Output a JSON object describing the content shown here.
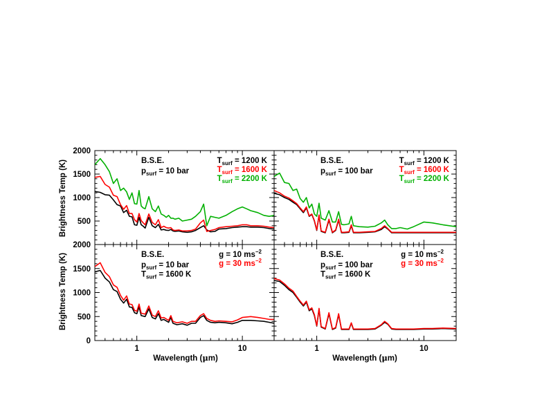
{
  "colors": {
    "black": "#000000",
    "red": "#ff0000",
    "green": "#00b000"
  },
  "axes": {
    "ylabel": "Brightness Temp (K)",
    "xlabel_text": "Wavelength (",
    "xlabel_mu": "μ",
    "xlabel_end": "m)",
    "x_scale": "log",
    "xlim": [
      0.4,
      20
    ],
    "ylim": [
      0,
      2000
    ],
    "yticks": [
      "0",
      "500",
      "1000",
      "1500",
      "2000"
    ],
    "xticks": [
      "1",
      "10"
    ]
  },
  "panels": [
    {
      "bse": "B.S.E.",
      "left_lines": [
        {
          "base": "p",
          "sub": "surf",
          "rest": " = 10 bar"
        }
      ],
      "right_lines": [
        {
          "base": "T",
          "sub": "surf",
          "rest": " = 1200 K",
          "color": "#000000"
        },
        {
          "base": "T",
          "sub": "surf",
          "rest": " = 1600 K",
          "color": "#ff0000"
        },
        {
          "base": "T",
          "sub": "surf",
          "rest": " = 2200 K",
          "color": "#00b000"
        }
      ]
    },
    {
      "bse": "B.S.E.",
      "left_lines": [
        {
          "base": "p",
          "sub": "surf",
          "rest": " = 100 bar"
        }
      ],
      "right_lines": [
        {
          "base": "T",
          "sub": "surf",
          "rest": " = 1200 K",
          "color": "#000000"
        },
        {
          "base": "T",
          "sub": "surf",
          "rest": " = 1600 K",
          "color": "#ff0000"
        },
        {
          "base": "T",
          "sub": "surf",
          "rest": " = 2200 K",
          "color": "#00b000"
        }
      ]
    },
    {
      "bse": "B.S.E.",
      "left_lines": [
        {
          "base": "p",
          "sub": "surf",
          "rest": " = 10 bar"
        },
        {
          "base": "T",
          "sub": "surf",
          "rest": " = 1600 K"
        }
      ],
      "right_lines": [
        {
          "base": "g = 10 ms",
          "sup": "−2",
          "color": "#000000"
        },
        {
          "base": "g = 30 ms",
          "sup": "−2",
          "color": "#ff0000"
        }
      ]
    },
    {
      "bse": "B.S.E.",
      "left_lines": [
        {
          "base": "p",
          "sub": "surf",
          "rest": " = 100 bar"
        },
        {
          "base": "T",
          "sub": "surf",
          "rest": " = 1600 K"
        }
      ],
      "right_lines": [
        {
          "base": "g = 10 ms",
          "sup": "−2",
          "color": "#000000"
        },
        {
          "base": "g = 30 ms",
          "sup": "−2",
          "color": "#ff0000"
        }
      ]
    }
  ],
  "chart_data": [
    {
      "type": "line",
      "x_scale": "log",
      "xlim": [
        0.4,
        20
      ],
      "ylim": [
        0,
        2000
      ],
      "series": [
        {
          "color": "#000000",
          "x": [
            0.4,
            0.45,
            0.5,
            0.55,
            0.6,
            0.65,
            0.7,
            0.75,
            0.8,
            0.85,
            0.9,
            0.95,
            1.0,
            1.05,
            1.1,
            1.15,
            1.2,
            1.3,
            1.4,
            1.5,
            1.6,
            1.7,
            1.8,
            1.9,
            2.0,
            2.1,
            2.2,
            2.3,
            2.5,
            2.7,
            3.0,
            3.3,
            3.6,
            4.0,
            4.3,
            4.6,
            5.0,
            5.5,
            6.0,
            7.0,
            8.0,
            9.0,
            10.0,
            11.0,
            12.0,
            14.0,
            16.0,
            18.0,
            20.0
          ],
          "y": [
            1130,
            1110,
            1060,
            1050,
            950,
            850,
            820,
            680,
            730,
            600,
            590,
            420,
            410,
            580,
            420,
            390,
            350,
            580,
            400,
            360,
            430,
            310,
            320,
            305,
            300,
            320,
            290,
            280,
            290,
            270,
            260,
            270,
            300,
            360,
            400,
            310,
            270,
            280,
            330,
            340,
            360,
            370,
            380,
            380,
            370,
            370,
            360,
            340,
            330
          ]
        },
        {
          "color": "#ff0000",
          "x": [
            0.4,
            0.45,
            0.5,
            0.55,
            0.6,
            0.65,
            0.7,
            0.75,
            0.8,
            0.85,
            0.9,
            0.95,
            1.0,
            1.05,
            1.1,
            1.15,
            1.2,
            1.3,
            1.4,
            1.5,
            1.6,
            1.7,
            1.8,
            1.9,
            2.0,
            2.1,
            2.2,
            2.3,
            2.5,
            2.7,
            3.0,
            3.3,
            3.6,
            4.0,
            4.3,
            4.6,
            5.0,
            5.5,
            6.0,
            7.0,
            8.0,
            9.0,
            10.0,
            11.0,
            12.0,
            14.0,
            16.0,
            18.0,
            20.0
          ],
          "y": [
            1430,
            1450,
            1280,
            1220,
            1050,
            1020,
            850,
            750,
            830,
            660,
            660,
            530,
            480,
            660,
            510,
            460,
            420,
            650,
            470,
            420,
            530,
            360,
            390,
            360,
            350,
            360,
            310,
            300,
            310,
            290,
            290,
            300,
            330,
            460,
            520,
            280,
            300,
            320,
            360,
            380,
            390,
            400,
            420,
            420,
            400,
            400,
            390,
            370,
            360
          ]
        },
        {
          "color": "#00b000",
          "x": [
            0.4,
            0.45,
            0.5,
            0.55,
            0.6,
            0.65,
            0.7,
            0.75,
            0.8,
            0.85,
            0.9,
            0.95,
            1.0,
            1.05,
            1.1,
            1.15,
            1.2,
            1.3,
            1.4,
            1.5,
            1.6,
            1.7,
            1.8,
            1.9,
            2.0,
            2.1,
            2.2,
            2.3,
            2.5,
            2.7,
            3.0,
            3.3,
            3.6,
            4.0,
            4.3,
            4.6,
            5.0,
            5.5,
            6.0,
            7.0,
            8.0,
            9.0,
            10.0,
            11.0,
            12.0,
            14.0,
            16.0,
            18.0,
            20.0
          ],
          "y": [
            1700,
            1830,
            1700,
            1550,
            1300,
            1400,
            1150,
            1200,
            1120,
            960,
            1100,
            870,
            860,
            1150,
            820,
            780,
            760,
            1020,
            760,
            700,
            820,
            650,
            620,
            580,
            620,
            560,
            560,
            540,
            560,
            500,
            520,
            540,
            600,
            700,
            860,
            400,
            600,
            580,
            560,
            620,
            700,
            760,
            800,
            760,
            720,
            680,
            620,
            600,
            620
          ]
        }
      ]
    },
    {
      "type": "line",
      "x_scale": "log",
      "xlim": [
        0.4,
        20
      ],
      "ylim": [
        0,
        2000
      ],
      "series": [
        {
          "color": "#000000",
          "x": [
            0.4,
            0.45,
            0.5,
            0.55,
            0.6,
            0.65,
            0.7,
            0.75,
            0.8,
            0.85,
            0.9,
            0.95,
            1.0,
            1.05,
            1.1,
            1.2,
            1.3,
            1.4,
            1.5,
            1.6,
            1.7,
            1.8,
            2.0,
            2.1,
            2.2,
            2.5,
            3.0,
            3.5,
            4.0,
            4.3,
            4.6,
            5.0,
            5.5,
            6.0,
            7.0,
            8.0,
            10.0,
            12.0,
            15.0,
            20.0
          ],
          "y": [
            1090,
            1060,
            1000,
            960,
            900,
            850,
            760,
            680,
            780,
            600,
            640,
            500,
            300,
            620,
            280,
            250,
            520,
            250,
            300,
            520,
            250,
            250,
            260,
            400,
            250,
            250,
            260,
            270,
            320,
            380,
            330,
            250,
            250,
            250,
            250,
            250,
            250,
            250,
            250,
            250
          ]
        },
        {
          "color": "#ff0000",
          "x": [
            0.4,
            0.45,
            0.5,
            0.55,
            0.6,
            0.65,
            0.7,
            0.75,
            0.8,
            0.85,
            0.9,
            0.95,
            1.0,
            1.05,
            1.1,
            1.2,
            1.3,
            1.4,
            1.5,
            1.6,
            1.7,
            1.8,
            2.0,
            2.1,
            2.2,
            2.5,
            3.0,
            3.5,
            4.0,
            4.3,
            4.6,
            5.0,
            5.5,
            6.0,
            7.0,
            8.0,
            10.0,
            12.0,
            15.0,
            20.0
          ],
          "y": [
            1150,
            1100,
            1030,
            990,
            930,
            870,
            780,
            700,
            800,
            610,
            650,
            510,
            310,
            630,
            290,
            260,
            540,
            260,
            310,
            540,
            260,
            260,
            270,
            420,
            260,
            260,
            270,
            280,
            340,
            400,
            340,
            260,
            260,
            260,
            260,
            260,
            260,
            260,
            260,
            260
          ]
        },
        {
          "color": "#00b000",
          "x": [
            0.4,
            0.45,
            0.5,
            0.55,
            0.6,
            0.65,
            0.7,
            0.75,
            0.8,
            0.85,
            0.9,
            0.95,
            1.0,
            1.05,
            1.1,
            1.2,
            1.3,
            1.4,
            1.5,
            1.6,
            1.7,
            1.8,
            2.0,
            2.1,
            2.2,
            2.5,
            3.0,
            3.5,
            4.0,
            4.3,
            4.6,
            5.0,
            5.5,
            6.0,
            7.0,
            8.0,
            10.0,
            12.0,
            15.0,
            20.0
          ],
          "y": [
            1450,
            1520,
            1320,
            1300,
            1150,
            1180,
            980,
            900,
            1000,
            780,
            860,
            650,
            600,
            880,
            560,
            520,
            720,
            480,
            480,
            700,
            430,
            420,
            440,
            600,
            400,
            380,
            370,
            390,
            460,
            520,
            420,
            340,
            340,
            360,
            330,
            380,
            480,
            460,
            420,
            380
          ]
        }
      ]
    },
    {
      "type": "line",
      "x_scale": "log",
      "xlim": [
        0.4,
        20
      ],
      "ylim": [
        0,
        2000
      ],
      "series": [
        {
          "color": "#000000",
          "x": [
            0.4,
            0.45,
            0.5,
            0.55,
            0.6,
            0.65,
            0.7,
            0.75,
            0.8,
            0.85,
            0.9,
            0.95,
            1.0,
            1.05,
            1.1,
            1.2,
            1.3,
            1.4,
            1.5,
            1.6,
            1.7,
            1.8,
            2.0,
            2.1,
            2.2,
            2.4,
            2.7,
            3.0,
            3.3,
            3.6,
            4.0,
            4.3,
            4.6,
            5.0,
            5.5,
            6.0,
            7.0,
            8.0,
            9.0,
            10.0,
            12.0,
            14.0,
            16.0,
            18.0,
            20.0
          ],
          "y": [
            1430,
            1460,
            1300,
            1220,
            1060,
            1020,
            860,
            780,
            860,
            700,
            690,
            580,
            560,
            700,
            520,
            500,
            660,
            480,
            450,
            560,
            420,
            440,
            380,
            480,
            360,
            330,
            350,
            320,
            360,
            360,
            480,
            520,
            420,
            380,
            370,
            380,
            370,
            350,
            380,
            420,
            420,
            410,
            400,
            380,
            360
          ]
        },
        {
          "color": "#ff0000",
          "x": [
            0.4,
            0.45,
            0.5,
            0.55,
            0.6,
            0.65,
            0.7,
            0.75,
            0.8,
            0.85,
            0.9,
            0.95,
            1.0,
            1.05,
            1.1,
            1.2,
            1.3,
            1.4,
            1.5,
            1.6,
            1.7,
            1.8,
            2.0,
            2.1,
            2.2,
            2.4,
            2.7,
            3.0,
            3.3,
            3.6,
            4.0,
            4.3,
            4.6,
            5.0,
            5.5,
            6.0,
            7.0,
            8.0,
            9.0,
            10.0,
            12.0,
            14.0,
            16.0,
            18.0,
            20.0
          ],
          "y": [
            1540,
            1620,
            1420,
            1330,
            1160,
            1110,
            940,
            840,
            930,
            760,
            750,
            630,
            610,
            760,
            570,
            550,
            720,
            530,
            500,
            620,
            470,
            480,
            420,
            520,
            400,
            370,
            390,
            360,
            400,
            400,
            520,
            560,
            460,
            420,
            400,
            410,
            400,
            390,
            430,
            480,
            500,
            480,
            460,
            440,
            440
          ]
        }
      ]
    },
    {
      "type": "line",
      "x_scale": "log",
      "xlim": [
        0.4,
        20
      ],
      "ylim": [
        0,
        2000
      ],
      "series": [
        {
          "color": "#000000",
          "x": [
            0.4,
            0.45,
            0.5,
            0.55,
            0.6,
            0.65,
            0.7,
            0.75,
            0.8,
            0.85,
            0.9,
            0.95,
            1.0,
            1.05,
            1.1,
            1.2,
            1.3,
            1.4,
            1.5,
            1.6,
            1.7,
            1.8,
            2.0,
            2.1,
            2.2,
            2.5,
            3.0,
            3.5,
            4.0,
            4.3,
            4.6,
            5.0,
            5.5,
            6.0,
            7.0,
            8.0,
            10.0,
            12.0,
            15.0,
            20.0
          ],
          "y": [
            1250,
            1230,
            1150,
            1060,
            1000,
            900,
            800,
            720,
            800,
            620,
            660,
            520,
            300,
            650,
            280,
            240,
            560,
            230,
            260,
            540,
            230,
            230,
            230,
            360,
            230,
            230,
            230,
            240,
            320,
            380,
            340,
            240,
            230,
            230,
            230,
            230,
            240,
            240,
            250,
            240
          ]
        },
        {
          "color": "#ff0000",
          "x": [
            0.4,
            0.45,
            0.5,
            0.55,
            0.6,
            0.65,
            0.7,
            0.75,
            0.8,
            0.85,
            0.9,
            0.95,
            1.0,
            1.05,
            1.1,
            1.2,
            1.3,
            1.4,
            1.5,
            1.6,
            1.7,
            1.8,
            2.0,
            2.1,
            2.2,
            2.5,
            3.0,
            3.5,
            4.0,
            4.3,
            4.6,
            5.0,
            5.5,
            6.0,
            7.0,
            8.0,
            10.0,
            12.0,
            15.0,
            20.0
          ],
          "y": [
            1290,
            1260,
            1180,
            1090,
            1030,
            920,
            820,
            740,
            820,
            640,
            680,
            540,
            310,
            670,
            290,
            250,
            580,
            240,
            270,
            560,
            240,
            240,
            240,
            370,
            240,
            240,
            240,
            250,
            330,
            400,
            350,
            250,
            240,
            240,
            240,
            240,
            250,
            250,
            260,
            250
          ]
        }
      ]
    }
  ]
}
